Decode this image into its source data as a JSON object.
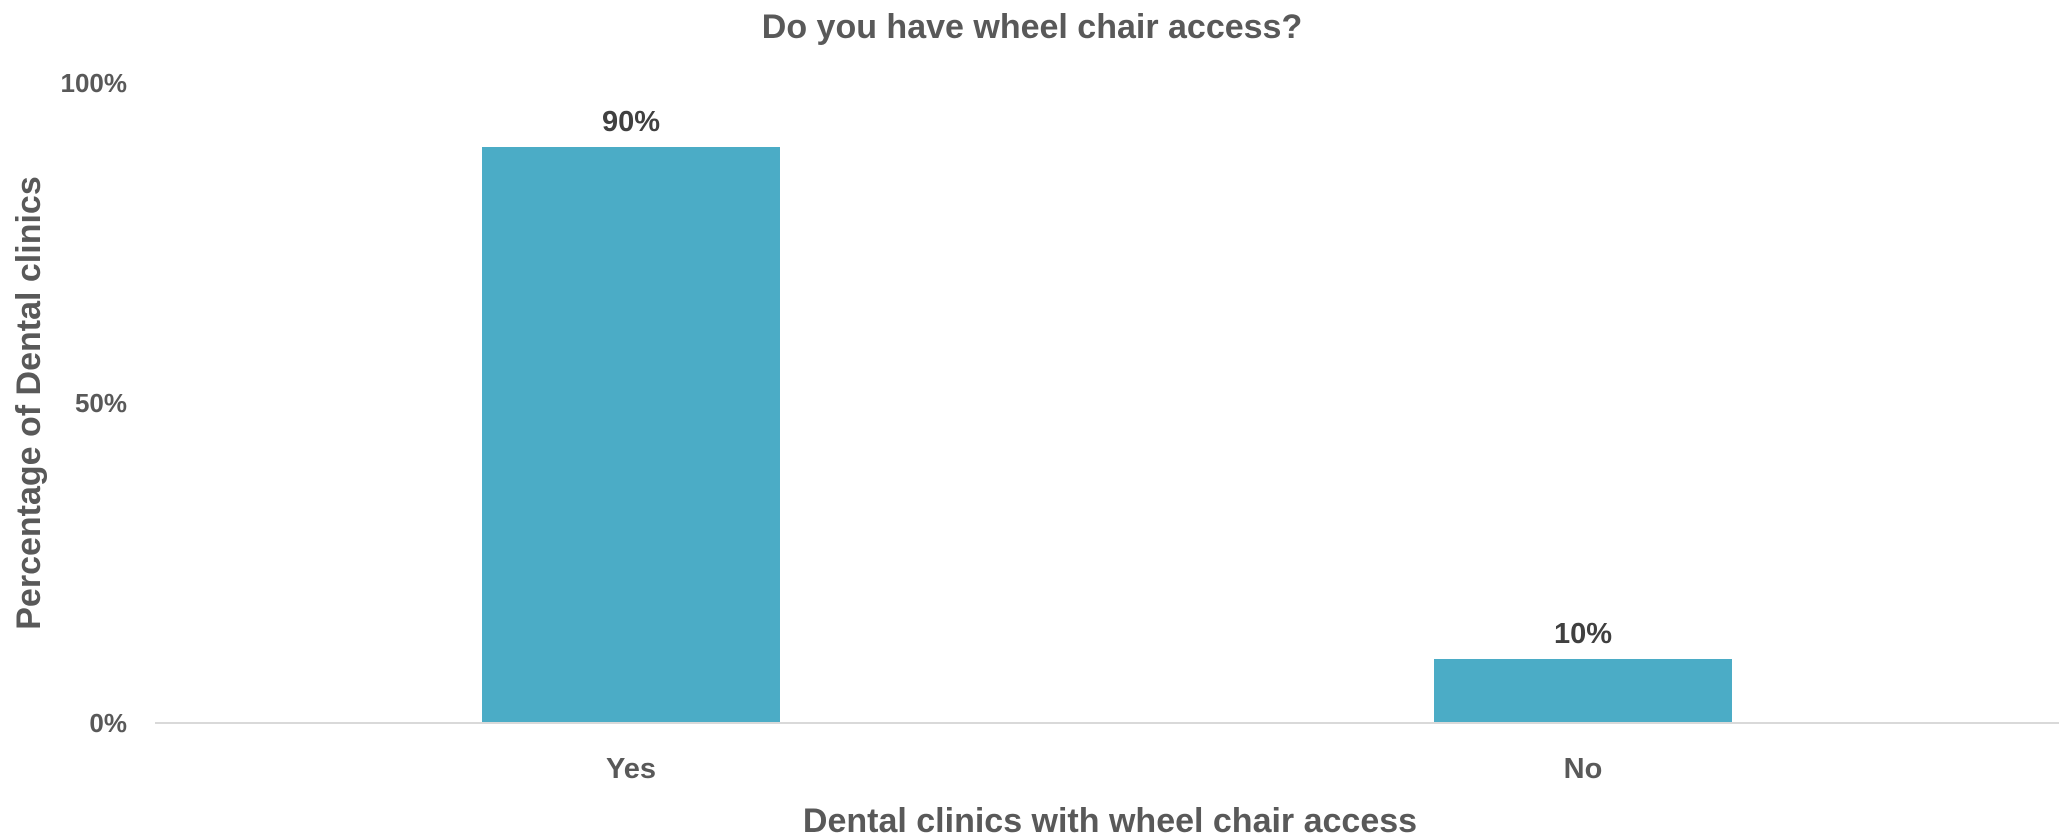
{
  "chart_data": {
    "type": "bar",
    "title": "Do you have wheel chair access?",
    "xlabel": "Dental clinics with wheel chair access",
    "ylabel": "Percentage of Dental clinics",
    "categories": [
      "Yes",
      "No"
    ],
    "values": [
      90,
      10
    ],
    "data_labels": [
      "90%",
      "10%"
    ],
    "ylim": [
      0,
      100
    ],
    "yticks": [
      0,
      50,
      100
    ],
    "ytick_labels": [
      "0%",
      "50%",
      "100%"
    ],
    "grid": false,
    "legend": "none",
    "bar_color": "#4BACC6"
  }
}
